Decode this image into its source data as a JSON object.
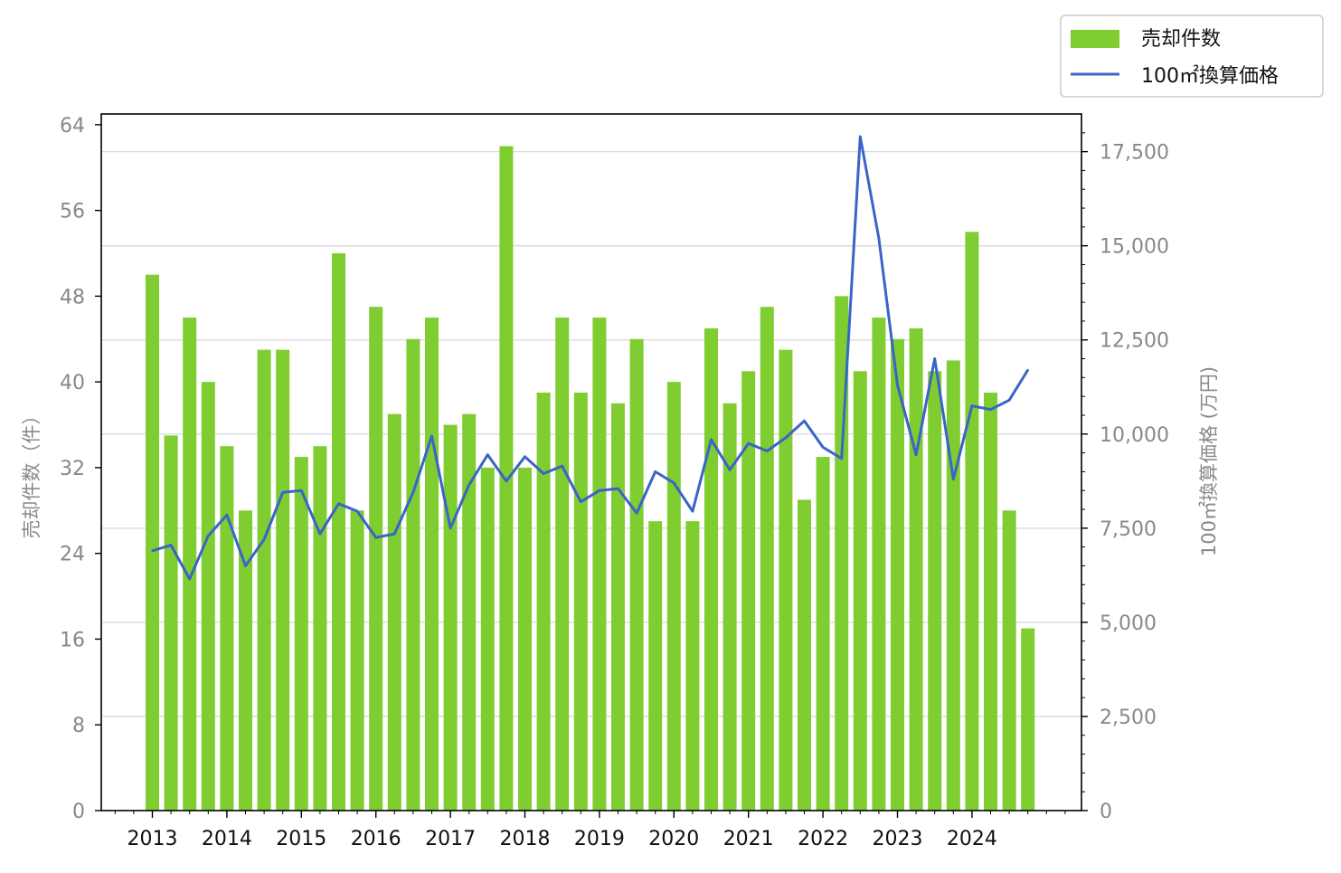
{
  "chart_data": {
    "type": "bar+line",
    "legend": {
      "placement": "top-right",
      "entries": [
        {
          "label": "売却件数",
          "kind": "bar",
          "color": "#7fcd31"
        },
        {
          "label": "100㎡換算価格",
          "kind": "line",
          "color": "#3a64c8"
        }
      ]
    },
    "x_tick_labels": [
      "2013",
      "2014",
      "2015",
      "2016",
      "2017",
      "2018",
      "2019",
      "2020",
      "2021",
      "2022",
      "2023",
      "2024"
    ],
    "periods": [
      "2013-Q1",
      "2013-Q2",
      "2013-Q3",
      "2013-Q4",
      "2014-Q1",
      "2014-Q2",
      "2014-Q3",
      "2014-Q4",
      "2015-Q1",
      "2015-Q2",
      "2015-Q3",
      "2015-Q4",
      "2016-Q1",
      "2016-Q2",
      "2016-Q3",
      "2016-Q4",
      "2017-Q1",
      "2017-Q2",
      "2017-Q3",
      "2017-Q4",
      "2018-Q1",
      "2018-Q2",
      "2018-Q3",
      "2018-Q4",
      "2019-Q1",
      "2019-Q2",
      "2019-Q3",
      "2019-Q4",
      "2020-Q1",
      "2020-Q2",
      "2020-Q3",
      "2020-Q4",
      "2021-Q1",
      "2021-Q2",
      "2021-Q3",
      "2021-Q4",
      "2022-Q1",
      "2022-Q2",
      "2022-Q3",
      "2022-Q4",
      "2023-Q1",
      "2023-Q2",
      "2023-Q3",
      "2023-Q4",
      "2024-Q1",
      "2024-Q2",
      "2024-Q3",
      "2024-Q4"
    ],
    "left_axis": {
      "label": "売却件数（件）",
      "ylim": [
        0,
        65
      ],
      "ticks": [
        0,
        8,
        16,
        24,
        32,
        40,
        48,
        56,
        64
      ]
    },
    "right_axis": {
      "label": "100㎡換算価格 (万円)",
      "ylim": [
        0,
        18500
      ],
      "ticks": [
        0,
        2500,
        5000,
        7500,
        10000,
        12500,
        15000,
        17500
      ],
      "tick_labels": [
        "0",
        "2,500",
        "5,000",
        "7,500",
        "10,000",
        "12,500",
        "15,000",
        "17,500"
      ]
    },
    "grid": true,
    "series": [
      {
        "name": "売却件数",
        "type": "bar",
        "axis": "left",
        "color": "#7fcd31",
        "values": [
          50,
          35,
          46,
          40,
          34,
          28,
          43,
          43,
          33,
          34,
          52,
          28,
          47,
          37,
          44,
          46,
          36,
          37,
          32,
          62,
          32,
          39,
          46,
          39,
          46,
          38,
          44,
          27,
          40,
          27,
          45,
          38,
          41,
          47,
          43,
          29,
          33,
          48,
          41,
          46,
          44,
          45,
          41,
          42,
          54,
          39,
          28,
          17
        ]
      },
      {
        "name": "100㎡換算価格",
        "type": "line",
        "axis": "right",
        "color": "#3a64c8",
        "values": [
          6900,
          7050,
          6150,
          7300,
          7850,
          6500,
          7200,
          8450,
          8500,
          7350,
          8150,
          7950,
          7250,
          7350,
          8450,
          9950,
          7500,
          8650,
          9450,
          8750,
          9400,
          8950,
          9150,
          8200,
          8500,
          8550,
          7900,
          9000,
          8700,
          7950,
          9850,
          9050,
          9750,
          9550,
          9900,
          10350,
          9650,
          9350,
          17900,
          15200,
          11300,
          9450,
          12000,
          8800,
          10750,
          10650,
          10900,
          11700
        ]
      }
    ]
  }
}
